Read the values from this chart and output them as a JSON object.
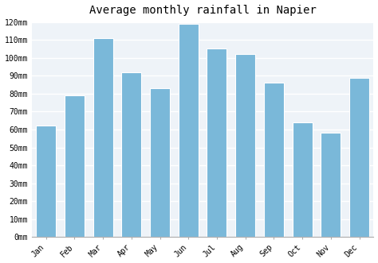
{
  "title": "Average monthly rainfall in Napier",
  "months": [
    "Jan",
    "Feb",
    "Mar",
    "Apr",
    "May",
    "Jun",
    "Jul",
    "Aug",
    "Sep",
    "Oct",
    "Nov",
    "Dec"
  ],
  "values": [
    62,
    79,
    111,
    92,
    83,
    119,
    105,
    102,
    86,
    64,
    58,
    89
  ],
  "bar_color": "#7ab8d9",
  "ylim": [
    0,
    120
  ],
  "yticks": [
    0,
    10,
    20,
    30,
    40,
    50,
    60,
    70,
    80,
    90,
    100,
    110,
    120
  ],
  "ytick_labels": [
    "0mm",
    "10mm",
    "20mm",
    "30mm",
    "40mm",
    "50mm",
    "60mm",
    "70mm",
    "80mm",
    "90mm",
    "100mm",
    "110mm",
    "120mm"
  ],
  "title_fontsize": 10,
  "tick_fontsize": 7,
  "background_color": "#ffffff",
  "plot_bg_color": "#eef3f8",
  "grid_color": "#ffffff",
  "title_font_family": "monospace",
  "tick_font_family": "monospace"
}
